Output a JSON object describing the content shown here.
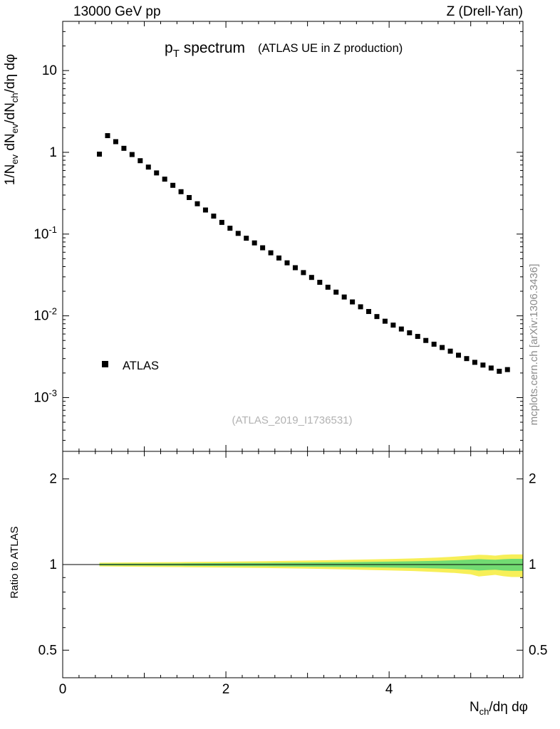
{
  "header": {
    "left": "13000 GeV pp",
    "right": "Z (Drell-Yan)"
  },
  "watermarks": {
    "analysis": "(ATLAS_2019_I1736531)",
    "site": "mcplots.cern.ch [arXiv:1306.3436]"
  },
  "chart_data": {
    "type": "scatter",
    "title": "pT spectrum",
    "title_segments": [
      {
        "t": "p"
      },
      {
        "t": "T",
        "sub": true
      },
      {
        "t": " spectrum"
      }
    ],
    "subtitle": "(ATLAS UE in Z production)",
    "xlim": [
      0,
      5.64
    ],
    "x_major_ticks": [
      0,
      2,
      4
    ],
    "x_major_labels": [
      "0",
      "2",
      "4"
    ],
    "x_minor_step": 0.2,
    "xlabel": "N_ch/deta dphi",
    "xlabel_segments": [
      {
        "t": "N"
      },
      {
        "t": "ch",
        "sub": true
      },
      {
        "t": "/dη dφ"
      }
    ],
    "main_panel": {
      "yscale": "log",
      "ylim": [
        0.00022,
        40
      ],
      "ylabel": "1/N_ev dN_ev/dN_ch/deta dphi",
      "ylabel_segments": [
        {
          "t": "1/N"
        },
        {
          "t": "ev",
          "sub": true
        },
        {
          "t": " dN"
        },
        {
          "t": "ev",
          "sub": true
        },
        {
          "t": "/dN"
        },
        {
          "t": "ch",
          "sub": true
        },
        {
          "t": "/dη dφ"
        }
      ],
      "yticks": [
        {
          "value": 10,
          "label": "10",
          "base": "10",
          "exp": ""
        },
        {
          "value": 1,
          "label": "1",
          "base": "1",
          "exp": ""
        },
        {
          "value": 0.1,
          "label": "10^-1",
          "base": "10",
          "exp": "-1"
        },
        {
          "value": 0.01,
          "label": "10^-2",
          "base": "10",
          "exp": "-2"
        },
        {
          "value": 0.001,
          "label": "10^-3",
          "base": "10",
          "exp": "-3"
        }
      ],
      "series": [
        {
          "name": "ATLAS",
          "marker": "square",
          "color": "#000000",
          "points": [
            [
              0.45,
              0.95
            ],
            [
              0.55,
              1.6
            ],
            [
              0.65,
              1.35
            ],
            [
              0.75,
              1.12
            ],
            [
              0.85,
              0.94
            ],
            [
              0.95,
              0.79
            ],
            [
              1.05,
              0.66
            ],
            [
              1.15,
              0.56
            ],
            [
              1.25,
              0.47
            ],
            [
              1.35,
              0.395
            ],
            [
              1.45,
              0.33
            ],
            [
              1.55,
              0.28
            ],
            [
              1.65,
              0.235
            ],
            [
              1.75,
              0.197
            ],
            [
              1.85,
              0.166
            ],
            [
              1.95,
              0.139
            ],
            [
              2.05,
              0.118
            ],
            [
              2.15,
              0.102
            ],
            [
              2.25,
              0.089
            ],
            [
              2.35,
              0.078
            ],
            [
              2.45,
              0.068
            ],
            [
              2.55,
              0.059
            ],
            [
              2.65,
              0.051
            ],
            [
              2.75,
              0.0445
            ],
            [
              2.85,
              0.0388
            ],
            [
              2.95,
              0.0338
            ],
            [
              3.05,
              0.0295
            ],
            [
              3.15,
              0.0257
            ],
            [
              3.25,
              0.0224
            ],
            [
              3.35,
              0.0195
            ],
            [
              3.45,
              0.017
            ],
            [
              3.55,
              0.0148
            ],
            [
              3.65,
              0.0129
            ],
            [
              3.75,
              0.0113
            ],
            [
              3.85,
              0.0098
            ],
            [
              3.95,
              0.0086
            ],
            [
              4.05,
              0.0077
            ],
            [
              4.15,
              0.0069
            ],
            [
              4.25,
              0.0062
            ],
            [
              4.35,
              0.0056
            ],
            [
              4.45,
              0.005
            ],
            [
              4.55,
              0.0045
            ],
            [
              4.65,
              0.0041
            ],
            [
              4.75,
              0.0037
            ],
            [
              4.85,
              0.0033
            ],
            [
              4.95,
              0.003
            ],
            [
              5.05,
              0.0027
            ],
            [
              5.15,
              0.0025
            ],
            [
              5.25,
              0.0023
            ],
            [
              5.35,
              0.0021
            ],
            [
              5.45,
              0.0022
            ]
          ]
        }
      ]
    },
    "ratio_panel": {
      "yscale": "log",
      "ylim": [
        0.4,
        2.5
      ],
      "ylabel": "Ratio to ATLAS",
      "yticks": [
        {
          "value": 2,
          "label": "2"
        },
        {
          "value": 1,
          "label": "1"
        },
        {
          "value": 0.5,
          "label": "0.5"
        }
      ],
      "baseline": 1,
      "band_colors": {
        "outer": "#f7ef58",
        "inner": "#72db72"
      },
      "band": {
        "x": [
          0.45,
          1.0,
          1.5,
          2.0,
          2.5,
          3.0,
          3.5,
          4.0,
          4.3,
          4.6,
          4.8,
          5.0,
          5.1,
          5.2,
          5.3,
          5.4,
          5.5,
          5.64
        ],
        "outer_lo": [
          0.985,
          0.982,
          0.979,
          0.976,
          0.972,
          0.967,
          0.961,
          0.954,
          0.949,
          0.941,
          0.934,
          0.924,
          0.908,
          0.914,
          0.92,
          0.91,
          0.904,
          0.904
        ],
        "outer_hi": [
          1.015,
          1.018,
          1.021,
          1.024,
          1.028,
          1.033,
          1.039,
          1.046,
          1.051,
          1.059,
          1.066,
          1.076,
          1.082,
          1.08,
          1.075,
          1.082,
          1.086,
          1.086
        ],
        "inner_lo": [
          0.993,
          0.992,
          0.99,
          0.988,
          0.986,
          0.983,
          0.98,
          0.976,
          0.973,
          0.969,
          0.965,
          0.959,
          0.952,
          0.956,
          0.959,
          0.953,
          0.95,
          0.95
        ],
        "inner_hi": [
          1.007,
          1.008,
          1.01,
          1.012,
          1.014,
          1.017,
          1.02,
          1.024,
          1.027,
          1.031,
          1.035,
          1.041,
          1.045,
          1.042,
          1.04,
          1.044,
          1.047,
          1.047
        ]
      }
    },
    "legend": {
      "label": "ATLAS",
      "marker": "square",
      "color": "#000000"
    }
  }
}
